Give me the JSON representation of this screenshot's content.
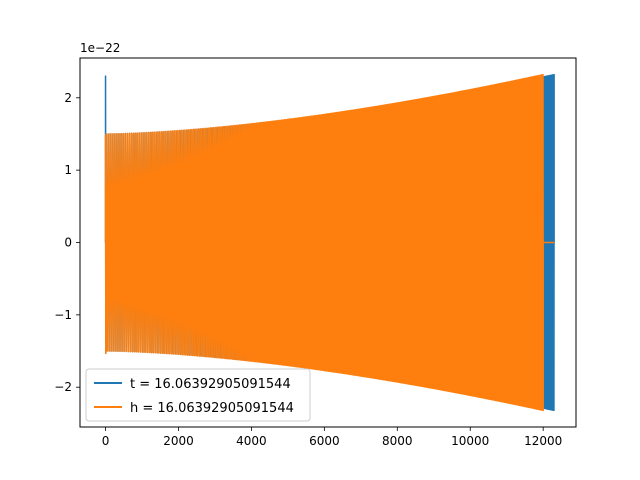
{
  "chart_data": {
    "type": "line",
    "title": "",
    "xlabel": "",
    "ylabel": "",
    "offset_text": "1e−22",
    "xlim": [
      -700,
      12900
    ],
    "ylim": [
      -2.55,
      2.55
    ],
    "x_ticks": [
      0,
      2000,
      4000,
      6000,
      8000,
      10000,
      12000
    ],
    "x_tick_labels": [
      "0",
      "2000",
      "4000",
      "6000",
      "8000",
      "10000",
      "12000"
    ],
    "y_ticks": [
      -2,
      -1,
      0,
      1,
      2
    ],
    "y_tick_labels": [
      "−2",
      "−1",
      "0",
      "1",
      "2"
    ],
    "grid": false,
    "legend_position": "lower-left",
    "series": [
      {
        "name": "t = 16.06392905091544",
        "color": "#1f77b4",
        "x_start": 0,
        "x_end": 12300,
        "amplitude_start": 1.5,
        "amplitude_end": 2.32,
        "initial_spike": 2.3,
        "initial_dip": -1.53,
        "period_start": 55,
        "period_end": 16
      },
      {
        "name": "h = 16.06392905091544",
        "color": "#ff7f0e",
        "x_start": 0,
        "x_end": 12000,
        "amplitude_start": 1.5,
        "amplitude_end": 2.32,
        "initial_spike": 1.48,
        "initial_dip": -1.53,
        "period_start": 55,
        "period_end": 16,
        "tail_x_end": 12300,
        "tail_value": 0
      }
    ]
  }
}
